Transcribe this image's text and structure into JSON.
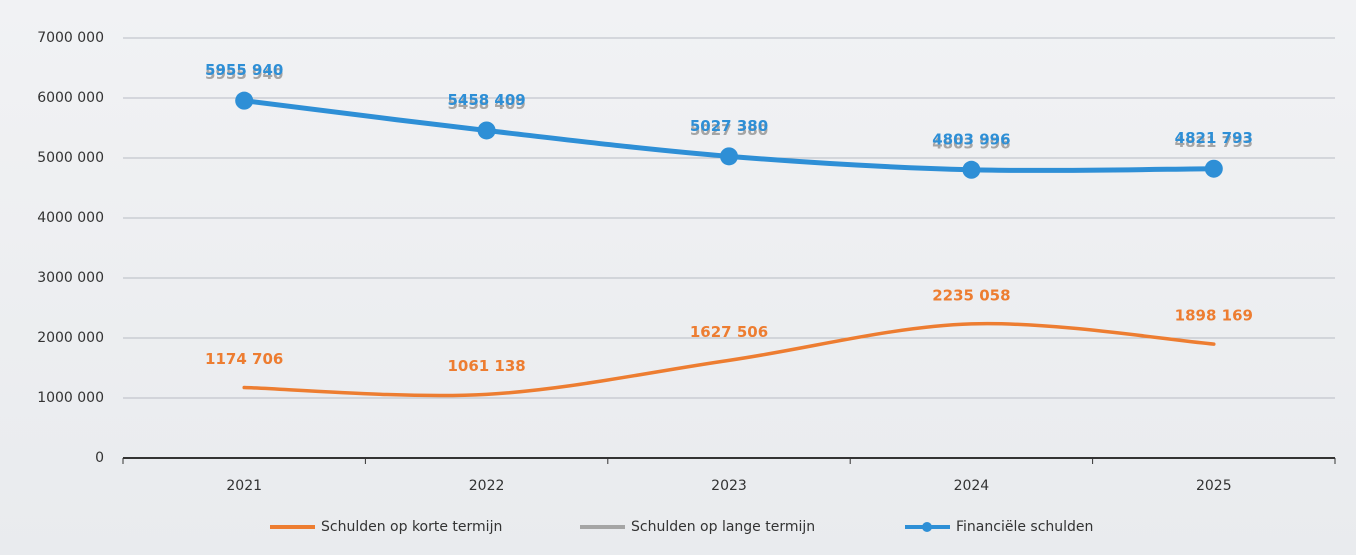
{
  "chart_data": {
    "type": "line",
    "categories": [
      "2021",
      "2022",
      "2023",
      "2024",
      "2025"
    ],
    "series": [
      {
        "name": "Schulden op korte termijn",
        "color": "#ed7d31",
        "values": [
          1174706,
          1061138,
          1627506,
          2235058,
          1898169
        ],
        "value_labels": [
          "1174 706",
          "1061 138",
          "1627 506",
          "2235 058",
          "1898 169"
        ]
      },
      {
        "name": "Schulden op lange termijn",
        "color": "#a5a5a5",
        "values": [
          5955940,
          5458409,
          5027380,
          4803996,
          4821793
        ],
        "value_labels": [
          "5955 940",
          "5458 409",
          "5027 380",
          "4803 996",
          "4821 793"
        ]
      },
      {
        "name": "Financiële schulden",
        "color": "#2e8fd6",
        "values": [
          5955940,
          5458409,
          5027380,
          4803996,
          4821793
        ],
        "value_labels": [
          "5955 940",
          "5458 409",
          "5027 380",
          "4803 996",
          "4821 793"
        ],
        "markers": true
      }
    ],
    "ylim": [
      0,
      7000000
    ],
    "yticks": [
      0,
      {
        "value": 1000000,
        "label": "1000 000"
      },
      {
        "value": 2000000,
        "label": "2000 000"
      },
      {
        "value": 3000000,
        "label": "3000 000"
      },
      {
        "value": 4000000,
        "label": "4000 000"
      },
      {
        "value": 5000000,
        "label": "5000 000"
      },
      {
        "value": 6000000,
        "label": "6000 000"
      },
      {
        "value": 7000000,
        "label": "7000 000"
      }
    ],
    "grid": true,
    "legend": "bottom",
    "smooth": true
  }
}
